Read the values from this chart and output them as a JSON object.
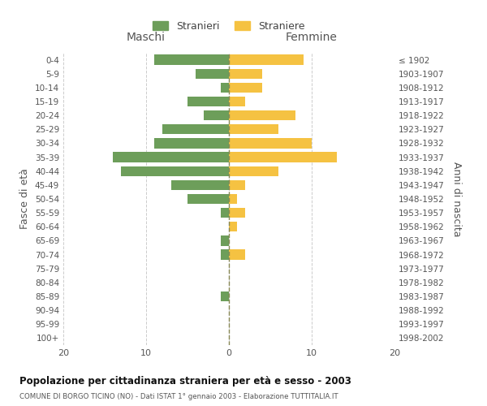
{
  "age_groups": [
    "0-4",
    "5-9",
    "10-14",
    "15-19",
    "20-24",
    "25-29",
    "30-34",
    "35-39",
    "40-44",
    "45-49",
    "50-54",
    "55-59",
    "60-64",
    "65-69",
    "70-74",
    "75-79",
    "80-84",
    "85-89",
    "90-94",
    "95-99",
    "100+"
  ],
  "birth_years": [
    "1998-2002",
    "1993-1997",
    "1988-1992",
    "1983-1987",
    "1978-1982",
    "1973-1977",
    "1968-1972",
    "1963-1967",
    "1958-1962",
    "1953-1957",
    "1948-1952",
    "1943-1947",
    "1938-1942",
    "1933-1937",
    "1928-1932",
    "1923-1927",
    "1918-1922",
    "1913-1917",
    "1908-1912",
    "1903-1907",
    "≤ 1902"
  ],
  "maschi": [
    9,
    4,
    1,
    5,
    3,
    8,
    9,
    14,
    13,
    7,
    5,
    1,
    0,
    1,
    1,
    0,
    0,
    1,
    0,
    0,
    0
  ],
  "femmine": [
    9,
    4,
    4,
    2,
    8,
    6,
    10,
    13,
    6,
    2,
    1,
    2,
    1,
    0,
    2,
    0,
    0,
    0,
    0,
    0,
    0
  ],
  "maschi_color": "#6d9e5a",
  "femmine_color": "#f5c242",
  "background_color": "#ffffff",
  "grid_color": "#cccccc",
  "centerline_color": "#888855",
  "title": "Popolazione per cittadinanza straniera per età e sesso - 2003",
  "subtitle": "COMUNE DI BORGO TICINO (NO) - Dati ISTAT 1° gennaio 2003 - Elaborazione TUTTITALIA.IT",
  "ylabel_left": "Fasce di età",
  "ylabel_right": "Anni di nascita",
  "xlabel_left": "Maschi",
  "xlabel_right": "Femmine",
  "legend_maschi": "Stranieri",
  "legend_femmine": "Straniere",
  "xlim": 20,
  "bar_height": 0.72
}
